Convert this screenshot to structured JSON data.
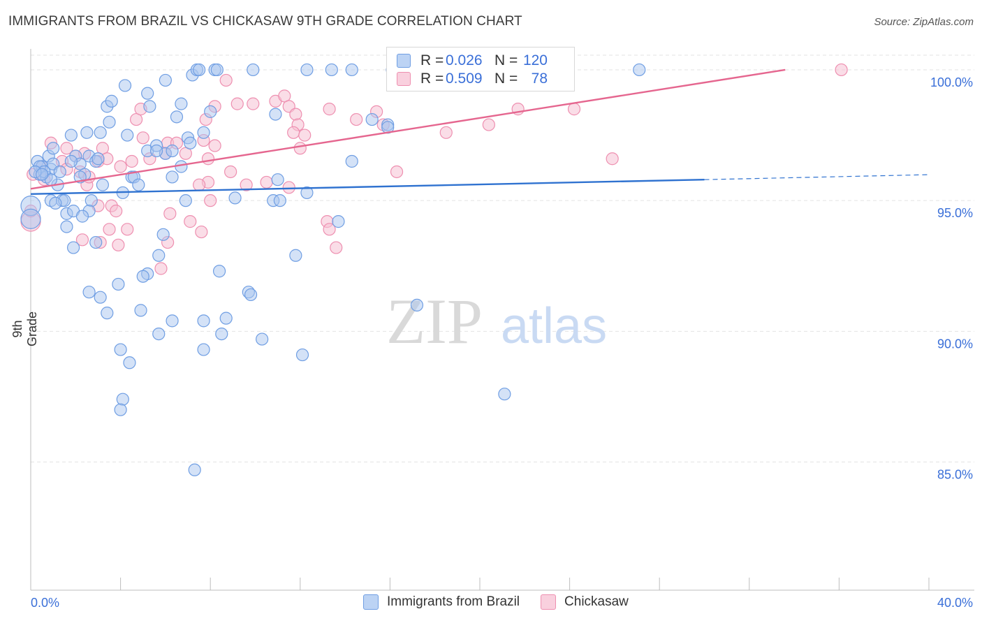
{
  "title": "IMMIGRANTS FROM BRAZIL VS CHICKASAW 9TH GRADE CORRELATION CHART",
  "source": "Source: ZipAtlas.com",
  "watermark": {
    "zip": "ZIP",
    "atlas": "atlas"
  },
  "legend_top": {
    "rows": [
      {
        "r_label": "R =",
        "r_value": "0.026",
        "n_label": "N =",
        "n_value": "120"
      },
      {
        "r_label": "R =",
        "r_value": "0.509",
        "n_label": "N =",
        "n_value": "78"
      }
    ]
  },
  "legend_bottom": [
    "Immigrants from Brazil",
    "Chickasaw"
  ],
  "colors": {
    "blue_fill": "#a9c6f0",
    "blue_stroke": "#6f9ee3",
    "blue_line": "#2f72d0",
    "pink_fill": "#f6c1d3",
    "pink_stroke": "#ee8fb0",
    "pink_line": "#e5668f",
    "axis_text": "#3a6fd8",
    "grid": "#e3e3e3"
  },
  "chart_data": {
    "type": "scatter",
    "title": "IMMIGRANTS FROM BRAZIL VS CHICKASAW 9TH GRADE CORRELATION CHART",
    "ylabel": "9th Grade",
    "xlabel": "",
    "xlim": [
      0,
      40
    ],
    "ylim": [
      80.1,
      100.8
    ],
    "x_tick_labels": [
      "0.0%",
      "40.0%"
    ],
    "y_ticks": [
      85,
      90,
      95,
      100
    ],
    "y_tick_labels": [
      "85.0%",
      "90.0%",
      "95.0%",
      "100.0%"
    ],
    "grid": true,
    "series": [
      {
        "name": "Immigrants from Brazil",
        "r": 0.026,
        "n": 120,
        "trend": {
          "x0": 0,
          "y0": 95.25,
          "x1": 30,
          "y1": 95.8,
          "dash_to_x": 40,
          "dash_to_y": 95.99
        },
        "points": [
          [
            0.0,
            94.8
          ],
          [
            0.0,
            94.3
          ],
          [
            0.3,
            96.5
          ],
          [
            0.5,
            96.3
          ],
          [
            0.4,
            96.0
          ],
          [
            0.8,
            96.7
          ],
          [
            1.0,
            97.0
          ],
          [
            0.9,
            96.2
          ],
          [
            0.7,
            95.9
          ],
          [
            1.2,
            95.6
          ],
          [
            0.9,
            95.0
          ],
          [
            1.4,
            95.0
          ],
          [
            1.6,
            94.5
          ],
          [
            1.9,
            94.6
          ],
          [
            1.6,
            94.0
          ],
          [
            1.9,
            93.2
          ],
          [
            2.0,
            96.7
          ],
          [
            2.2,
            96.4
          ],
          [
            2.4,
            96.0
          ],
          [
            2.6,
            96.7
          ],
          [
            2.9,
            96.5
          ],
          [
            1.8,
            97.5
          ],
          [
            2.5,
            97.6
          ],
          [
            3.1,
            97.6
          ],
          [
            3.5,
            98.0
          ],
          [
            3.4,
            98.6
          ],
          [
            3.6,
            98.8
          ],
          [
            4.2,
            99.4
          ],
          [
            5.2,
            99.1
          ],
          [
            5.3,
            98.6
          ],
          [
            6.0,
            99.6
          ],
          [
            6.5,
            98.2
          ],
          [
            6.7,
            98.7
          ],
          [
            5.2,
            96.9
          ],
          [
            5.6,
            97.1
          ],
          [
            6.0,
            96.8
          ],
          [
            6.3,
            96.9
          ],
          [
            7.0,
            97.4
          ],
          [
            7.1,
            97.2
          ],
          [
            7.7,
            97.6
          ],
          [
            4.5,
            95.9
          ],
          [
            4.6,
            95.9
          ],
          [
            4.8,
            95.6
          ],
          [
            4.1,
            95.3
          ],
          [
            3.2,
            95.6
          ],
          [
            2.7,
            95.0
          ],
          [
            2.6,
            94.6
          ],
          [
            2.9,
            93.4
          ],
          [
            5.9,
            93.7
          ],
          [
            5.7,
            92.9
          ],
          [
            5.2,
            92.2
          ],
          [
            5.0,
            92.1
          ],
          [
            3.9,
            91.8
          ],
          [
            2.6,
            91.5
          ],
          [
            3.1,
            91.3
          ],
          [
            3.4,
            90.7
          ],
          [
            4.9,
            90.8
          ],
          [
            6.3,
            90.4
          ],
          [
            5.7,
            89.9
          ],
          [
            4.0,
            89.3
          ],
          [
            4.4,
            88.8
          ],
          [
            4.1,
            87.4
          ],
          [
            4.0,
            87.0
          ],
          [
            7.7,
            90.4
          ],
          [
            8.7,
            90.5
          ],
          [
            8.5,
            89.9
          ],
          [
            7.7,
            89.3
          ],
          [
            8.4,
            92.3
          ],
          [
            9.7,
            91.5
          ],
          [
            9.8,
            91.4
          ],
          [
            10.3,
            89.7
          ],
          [
            12.1,
            89.1
          ],
          [
            11.8,
            92.9
          ],
          [
            6.9,
            95.0
          ],
          [
            9.1,
            95.1
          ],
          [
            10.8,
            95.0
          ],
          [
            11.1,
            95.0
          ],
          [
            11.0,
            95.8
          ],
          [
            12.3,
            95.3
          ],
          [
            13.7,
            94.2
          ],
          [
            14.3,
            96.5
          ],
          [
            15.2,
            98.1
          ],
          [
            15.9,
            97.9
          ],
          [
            10.9,
            98.3
          ],
          [
            8.0,
            98.4
          ],
          [
            7.2,
            99.8
          ],
          [
            7.4,
            100.0
          ],
          [
            7.5,
            100.0
          ],
          [
            8.2,
            100.0
          ],
          [
            8.3,
            100.0
          ],
          [
            9.9,
            100.0
          ],
          [
            12.3,
            100.0
          ],
          [
            13.4,
            100.0
          ],
          [
            14.3,
            100.0
          ],
          [
            16.1,
            100.0
          ],
          [
            16.7,
            100.0
          ],
          [
            18.0,
            100.0
          ],
          [
            19.3,
            100.0
          ],
          [
            27.1,
            100.0
          ],
          [
            17.2,
            91.0
          ],
          [
            21.1,
            87.6
          ],
          [
            7.3,
            84.7
          ],
          [
            0.4,
            96.3
          ],
          [
            0.6,
            96.1
          ],
          [
            1.0,
            96.4
          ],
          [
            1.3,
            96.1
          ],
          [
            0.2,
            96.1
          ],
          [
            0.9,
            95.8
          ],
          [
            0.5,
            96.0
          ],
          [
            1.8,
            96.5
          ],
          [
            2.2,
            95.9
          ],
          [
            3.0,
            96.6
          ],
          [
            4.3,
            97.5
          ],
          [
            5.6,
            96.9
          ],
          [
            6.7,
            96.3
          ],
          [
            1.5,
            95.0
          ],
          [
            1.1,
            94.9
          ],
          [
            2.3,
            94.4
          ],
          [
            6.3,
            95.9
          ],
          [
            15.9,
            97.8
          ]
        ]
      },
      {
        "name": "Chickasaw",
        "r": 0.509,
        "n": 78,
        "trend": {
          "x0": 0,
          "y0": 95.45,
          "x1": 33.6,
          "y1": 100.0
        },
        "points": [
          [
            0.0,
            94.2
          ],
          [
            0.0,
            94.6
          ],
          [
            0.1,
            96.0
          ],
          [
            0.5,
            96.3
          ],
          [
            0.6,
            95.8
          ],
          [
            0.9,
            97.2
          ],
          [
            1.4,
            96.5
          ],
          [
            1.6,
            96.2
          ],
          [
            1.6,
            97.0
          ],
          [
            2.0,
            96.7
          ],
          [
            2.2,
            96.1
          ],
          [
            2.4,
            96.8
          ],
          [
            2.5,
            95.6
          ],
          [
            2.6,
            95.9
          ],
          [
            3.0,
            96.5
          ],
          [
            3.2,
            97.0
          ],
          [
            3.4,
            96.6
          ],
          [
            4.0,
            96.3
          ],
          [
            4.5,
            96.5
          ],
          [
            5.0,
            97.4
          ],
          [
            4.7,
            98.1
          ],
          [
            4.9,
            98.5
          ],
          [
            5.3,
            96.6
          ],
          [
            6.0,
            96.8
          ],
          [
            6.1,
            97.2
          ],
          [
            6.5,
            97.2
          ],
          [
            6.9,
            96.8
          ],
          [
            7.7,
            97.3
          ],
          [
            7.9,
            96.6
          ],
          [
            8.2,
            97.1
          ],
          [
            7.8,
            98.1
          ],
          [
            8.2,
            98.6
          ],
          [
            8.7,
            99.6
          ],
          [
            9.2,
            98.7
          ],
          [
            9.9,
            98.7
          ],
          [
            10.9,
            98.8
          ],
          [
            11.3,
            99.0
          ],
          [
            11.5,
            98.6
          ],
          [
            11.8,
            98.3
          ],
          [
            11.9,
            97.9
          ],
          [
            11.7,
            97.6
          ],
          [
            12.0,
            97.0
          ],
          [
            12.2,
            97.5
          ],
          [
            13.3,
            98.5
          ],
          [
            14.5,
            98.1
          ],
          [
            15.4,
            98.4
          ],
          [
            15.7,
            97.9
          ],
          [
            11.5,
            95.5
          ],
          [
            10.5,
            95.7
          ],
          [
            9.6,
            95.6
          ],
          [
            8.9,
            96.1
          ],
          [
            7.9,
            95.7
          ],
          [
            8.0,
            95.0
          ],
          [
            7.5,
            95.6
          ],
          [
            7.1,
            94.2
          ],
          [
            7.6,
            93.8
          ],
          [
            6.1,
            93.4
          ],
          [
            5.8,
            92.4
          ],
          [
            4.3,
            93.9
          ],
          [
            3.9,
            93.3
          ],
          [
            3.5,
            93.9
          ],
          [
            2.3,
            93.5
          ],
          [
            3.1,
            93.4
          ],
          [
            3.0,
            94.8
          ],
          [
            3.6,
            94.8
          ],
          [
            3.8,
            94.6
          ],
          [
            6.2,
            94.5
          ],
          [
            13.2,
            94.2
          ],
          [
            13.3,
            93.9
          ],
          [
            13.6,
            93.2
          ],
          [
            16.3,
            96.1
          ],
          [
            18.5,
            97.6
          ],
          [
            20.4,
            97.9
          ],
          [
            21.7,
            98.5
          ],
          [
            24.2,
            98.5
          ],
          [
            25.9,
            96.6
          ],
          [
            21.3,
            100.0
          ],
          [
            36.1,
            100.0
          ]
        ]
      }
    ]
  }
}
